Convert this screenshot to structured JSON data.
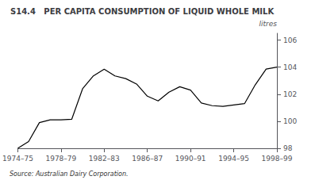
{
  "chart_data": {
    "type": "line",
    "title": "S14.4   PER CAPITA CONSUMPTION OF LIQUID WHOLE MILK",
    "ylabel": "litres",
    "source": "Source: Australian Dairy Corporation.",
    "categories": [
      "1974–75",
      null,
      null,
      null,
      "1978–79",
      null,
      null,
      null,
      "1982–83",
      null,
      null,
      null,
      "1986–87",
      null,
      null,
      null,
      "1990–91",
      null,
      null,
      null,
      "1994–95",
      null,
      null,
      null,
      "1998–99"
    ],
    "values": [
      98.0,
      98.5,
      99.9,
      100.1,
      100.1,
      100.15,
      102.4,
      103.35,
      103.85,
      103.35,
      103.15,
      102.75,
      101.85,
      101.5,
      102.15,
      102.55,
      102.3,
      101.35,
      101.15,
      101.1,
      101.2,
      101.3,
      102.7,
      103.85,
      104.0
    ],
    "color": "#000000",
    "ylim": [
      98,
      106.5
    ],
    "yticks": [
      98,
      100,
      102,
      104,
      106
    ],
    "grid": false
  }
}
